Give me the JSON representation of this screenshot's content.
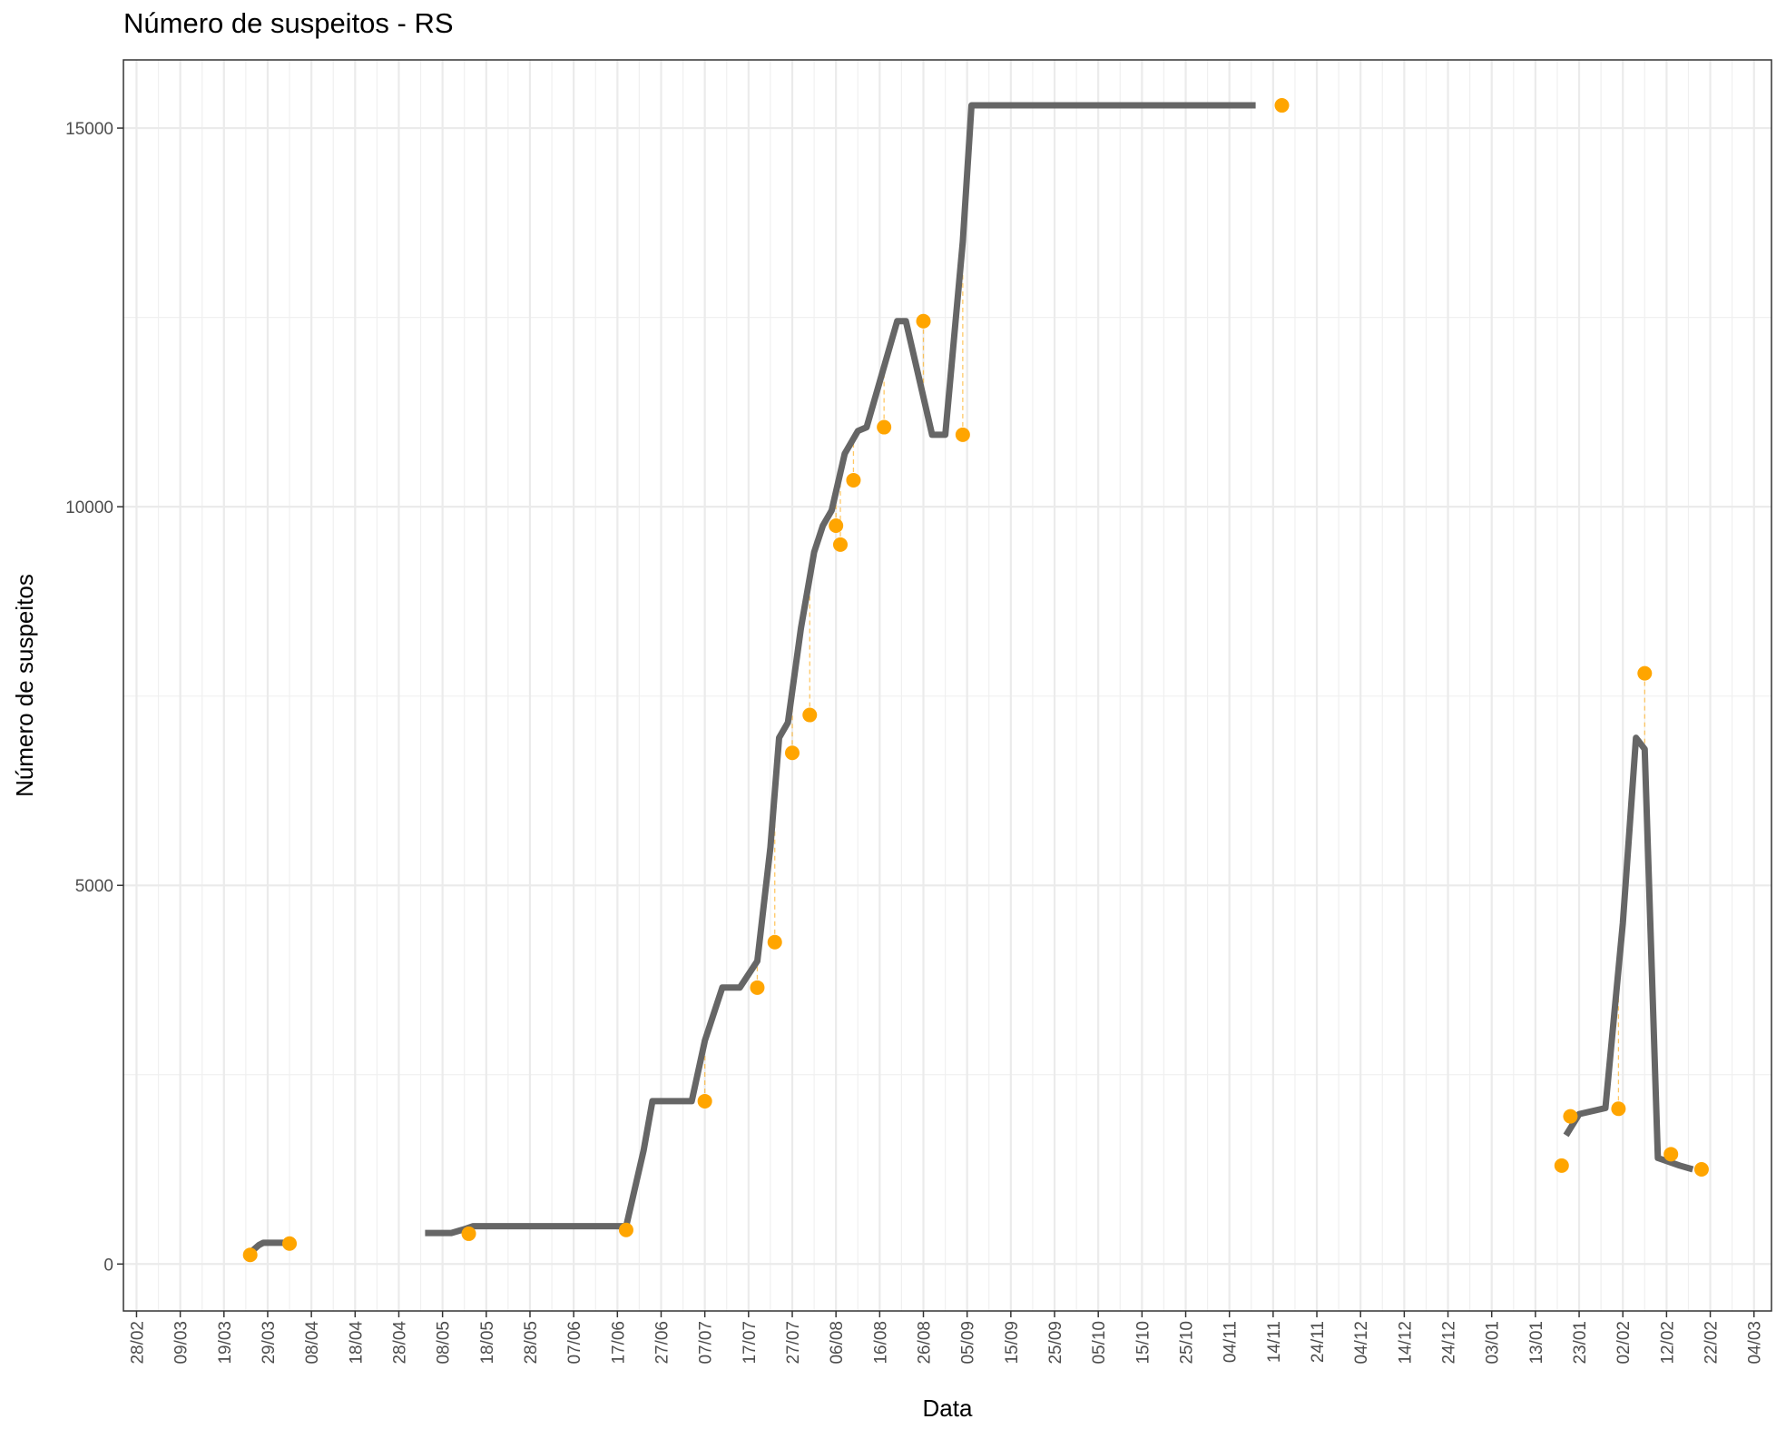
{
  "chart_data": {
    "type": "line",
    "title": "Número de suspeitos - RS",
    "xlabel": "Data",
    "ylabel": "Número de suspeitos",
    "x_axis_type": "date",
    "xlim": [
      "2020-02-25",
      "2021-03-08"
    ],
    "ylim": [
      -620,
      15900
    ],
    "x_ticks": [
      "2020-02-28",
      "2020-03-09",
      "2020-03-19",
      "2020-03-29",
      "2020-04-08",
      "2020-04-18",
      "2020-04-28",
      "2020-05-08",
      "2020-05-18",
      "2020-05-28",
      "2020-06-07",
      "2020-06-17",
      "2020-06-27",
      "2020-07-07",
      "2020-07-17",
      "2020-07-27",
      "2020-08-06",
      "2020-08-16",
      "2020-08-26",
      "2020-09-05",
      "2020-09-15",
      "2020-09-25",
      "2020-10-05",
      "2020-10-15",
      "2020-10-25",
      "2020-11-04",
      "2020-11-14",
      "2020-11-24",
      "2020-12-04",
      "2020-12-14",
      "2020-12-24",
      "2021-01-03",
      "2021-01-13",
      "2021-01-23",
      "2021-02-02",
      "2021-02-12",
      "2021-02-22",
      "2021-03-04"
    ],
    "x_tick_labels": [
      "28/02",
      "09/03",
      "19/03",
      "29/03",
      "08/04",
      "18/04",
      "28/04",
      "08/05",
      "18/05",
      "28/05",
      "07/06",
      "17/06",
      "27/06",
      "07/07",
      "17/07",
      "27/07",
      "06/08",
      "16/08",
      "26/08",
      "05/09",
      "15/09",
      "25/09",
      "05/10",
      "15/10",
      "25/10",
      "04/11",
      "14/11",
      "24/11",
      "04/12",
      "14/12",
      "24/12",
      "03/01",
      "13/01",
      "23/01",
      "02/02",
      "12/02",
      "22/02",
      "04/03"
    ],
    "y_ticks": [
      0,
      5000,
      10000,
      15000
    ],
    "y_tick_labels": [
      "0",
      "5000",
      "10000",
      "15000"
    ],
    "grid": true,
    "theme": "bw",
    "series": [
      {
        "style": "smoothed-line",
        "color": "#666666",
        "segments": [
          [
            [
              "2020-03-25",
              150
            ],
            [
              "2020-03-27",
              250
            ],
            [
              "2020-03-28",
              280
            ],
            [
              "2020-04-02",
              280
            ]
          ],
          [
            [
              "2020-05-04",
              410
            ],
            [
              "2020-05-10",
              410
            ],
            [
              "2020-05-13",
              460
            ],
            [
              "2020-05-15",
              500
            ],
            [
              "2020-06-19",
              500
            ],
            [
              "2020-06-23",
              1500
            ],
            [
              "2020-06-25",
              2150
            ],
            [
              "2020-07-04",
              2150
            ],
            [
              "2020-07-07",
              2950
            ],
            [
              "2020-07-11",
              3650
            ],
            [
              "2020-07-15",
              3650
            ],
            [
              "2020-07-19",
              4000
            ],
            [
              "2020-07-22",
              5500
            ],
            [
              "2020-07-24",
              6950
            ],
            [
              "2020-07-26",
              7150
            ],
            [
              "2020-07-29",
              8400
            ],
            [
              "2020-08-01",
              9400
            ],
            [
              "2020-08-03",
              9750
            ],
            [
              "2020-08-05",
              9950
            ],
            [
              "2020-08-08",
              10700
            ],
            [
              "2020-08-11",
              11000
            ],
            [
              "2020-08-13",
              11050
            ],
            [
              "2020-08-20",
              12450
            ],
            [
              "2020-08-22",
              12450
            ],
            [
              "2020-08-28",
              10950
            ],
            [
              "2020-08-31",
              10950
            ],
            [
              "2020-09-04",
              13500
            ],
            [
              "2020-09-06",
              15300
            ],
            [
              "2020-11-10",
              15300
            ]
          ],
          [
            [
              "2021-01-20",
              1700
            ],
            [
              "2021-01-23",
              1980
            ],
            [
              "2021-01-29",
              2060
            ],
            [
              "2021-02-02",
              4500
            ],
            [
              "2021-02-05",
              6950
            ],
            [
              "2021-02-07",
              6800
            ],
            [
              "2021-02-10",
              1400
            ],
            [
              "2021-02-15",
              1300
            ],
            [
              "2021-02-18",
              1250
            ]
          ]
        ]
      },
      {
        "style": "points",
        "color": "#FFA500",
        "points": [
          [
            "2020-03-25",
            120
          ],
          [
            "2020-04-03",
            270
          ],
          [
            "2020-05-14",
            400
          ],
          [
            "2020-06-19",
            450
          ],
          [
            "2020-07-07",
            2150
          ],
          [
            "2020-07-19",
            3650
          ],
          [
            "2020-07-23",
            4250
          ],
          [
            "2020-07-27",
            6750
          ],
          [
            "2020-07-31",
            7250
          ],
          [
            "2020-08-06",
            9750
          ],
          [
            "2020-08-07",
            9500
          ],
          [
            "2020-08-10",
            10350
          ],
          [
            "2020-08-17",
            11050
          ],
          [
            "2020-08-26",
            12450
          ],
          [
            "2020-09-04",
            10950
          ],
          [
            "2020-11-16",
            15300
          ],
          [
            "2021-01-19",
            1300
          ],
          [
            "2021-01-21",
            1950
          ],
          [
            "2021-02-01",
            2050
          ],
          [
            "2021-02-07",
            7800
          ],
          [
            "2021-02-13",
            1450
          ],
          [
            "2021-02-20",
            1250
          ]
        ]
      }
    ]
  }
}
